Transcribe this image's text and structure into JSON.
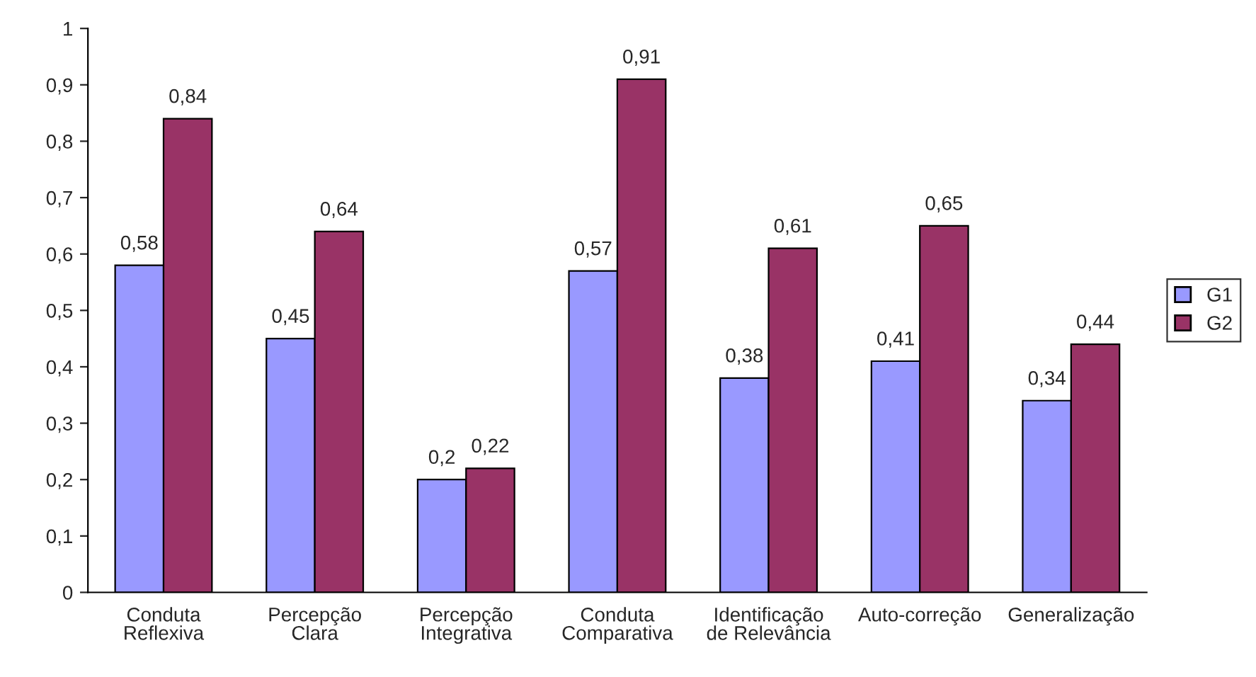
{
  "chart_data": {
    "type": "bar",
    "categories": [
      "Conduta\nReflexiva",
      "Percepção\nClara",
      "Percepção\nIntegrativa",
      "Conduta\nComparativa",
      "Identificação\nde Relevância",
      "Auto-correção",
      "Generalização"
    ],
    "series": [
      {
        "name": "G1",
        "color": "#9999ff",
        "values": [
          0.58,
          0.45,
          0.2,
          0.57,
          0.38,
          0.41,
          0.34
        ],
        "value_labels": [
          "0,58",
          "0,45",
          "0,2",
          "0,57",
          "0,38",
          "0,41",
          "0,34"
        ]
      },
      {
        "name": "G2",
        "color": "#993366",
        "values": [
          0.84,
          0.64,
          0.22,
          0.91,
          0.61,
          0.65,
          0.44
        ],
        "value_labels": [
          "0,84",
          "0,64",
          "0,22",
          "0,91",
          "0,61",
          "0,65",
          "0,44"
        ]
      }
    ],
    "ylim": [
      0,
      1
    ],
    "yticks": [
      0,
      {
        "value": 0.1,
        "label": "0,1"
      },
      {
        "value": 0.2,
        "label": "0,2"
      },
      {
        "value": 0.3,
        "label": "0,3"
      },
      {
        "value": 0.4,
        "label": "0,4"
      },
      {
        "value": 0.5,
        "label": "0,5"
      },
      {
        "value": 0.6,
        "label": "0,6"
      },
      {
        "value": 0.7,
        "label": "0,7"
      },
      {
        "value": 0.8,
        "label": "0,8"
      },
      {
        "value": 0.9,
        "label": "0,9"
      },
      1
    ],
    "grid": false,
    "legend": "right"
  }
}
